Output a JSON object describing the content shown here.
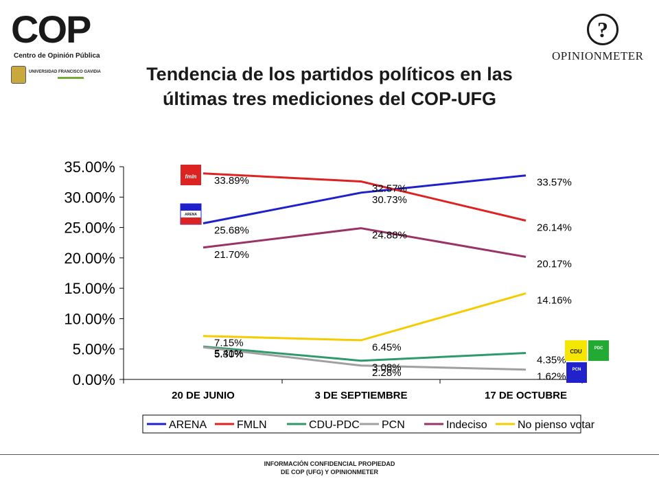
{
  "logos": {
    "cop_word": "COP",
    "cop_subtitle": "Centro de Opinión Pública",
    "ufg_text": "UNIVERSIDAD FRANCISCO GAVIDIA",
    "opinionmeter_word": "OPINIONMETER"
  },
  "title_line1": "Tendencia de los partidos políticos en las",
  "title_line2": "últimas tres mediciones del COP-UFG",
  "footer_line1": "INFORMACIÓN CONFIDENCIAL PROPIEDAD",
  "footer_line2": "DE COP (UFG) Y OPINIONMETER",
  "chart_data": {
    "type": "line",
    "categories": [
      "20 DE JUNIO",
      "3 DE SEPTIEMBRE",
      "17 DE OCTUBRE"
    ],
    "ylim": [
      0,
      35
    ],
    "yticks": [
      "0.00%",
      "5.00%",
      "10.00%",
      "15.00%",
      "20.00%",
      "25.00%",
      "30.00%",
      "35.00%"
    ],
    "grid": false,
    "legend_position": "bottom",
    "series": [
      {
        "name": "ARENA",
        "color": "#1f1fcc",
        "values": [
          25.68,
          30.73,
          33.57
        ],
        "labels": [
          "25.68%",
          "30.73%",
          "33.57%"
        ]
      },
      {
        "name": "FMLN",
        "color": "#dd2222",
        "values": [
          33.89,
          32.57,
          26.14
        ],
        "labels": [
          "33.89%",
          "32.57%",
          "26.14%"
        ]
      },
      {
        "name": "CDU-PDC",
        "color": "#2e9a6a",
        "values": [
          5.41,
          3.08,
          4.35
        ],
        "labels": [
          "5.41%",
          "3.08%",
          "4.35%"
        ]
      },
      {
        "name": "PCN",
        "color": "#a0a0a0",
        "values": [
          5.3,
          2.28,
          1.62
        ],
        "labels": [
          "5.30%",
          "2.28%",
          "1.62%"
        ]
      },
      {
        "name": "Indeciso",
        "color": "#993366",
        "values": [
          21.7,
          24.88,
          20.17
        ],
        "labels": [
          "21.70%",
          "24.88%",
          "20.17%"
        ]
      },
      {
        "name": "No pienso votar",
        "color": "#f5cc00",
        "values": [
          7.15,
          6.45,
          14.16
        ],
        "labels": [
          "7.15%",
          "6.45%",
          "14.16%"
        ]
      }
    ],
    "party_badges": {
      "fmln": "fmln",
      "arena": "ARENA",
      "cdu": "CDU",
      "pdc": "PDC",
      "pcn": "PCN"
    }
  }
}
